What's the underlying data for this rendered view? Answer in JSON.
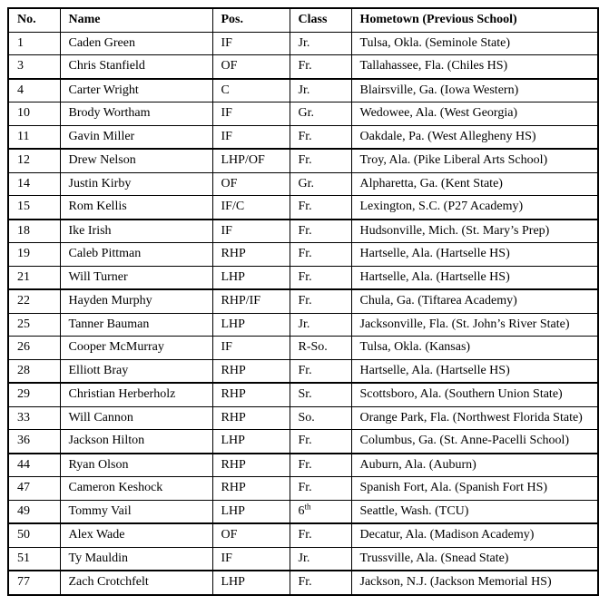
{
  "colors": {
    "background": "#ffffff",
    "text": "#000000",
    "border": "#000000"
  },
  "table": {
    "columns": [
      {
        "key": "no",
        "label": "No."
      },
      {
        "key": "name",
        "label": "Name"
      },
      {
        "key": "pos",
        "label": "Pos."
      },
      {
        "key": "class",
        "label": "Class"
      },
      {
        "key": "hometown",
        "label": "Hometown (Previous School)"
      }
    ],
    "rows": [
      {
        "no": "1",
        "name": "Caden Green",
        "pos": "IF",
        "class": "Jr.",
        "hometown": "Tulsa, Okla. (Seminole State)"
      },
      {
        "no": "3",
        "name": "Chris Stanfield",
        "pos": "OF",
        "class": "Fr.",
        "hometown": "Tallahassee, Fla. (Chiles HS)",
        "group_end": true
      },
      {
        "no": "4",
        "name": "Carter Wright",
        "pos": "C",
        "class": "Jr.",
        "hometown": "Blairsville, Ga. (Iowa Western)"
      },
      {
        "no": "10",
        "name": "Brody Wortham",
        "pos": "IF",
        "class": "Gr.",
        "hometown": "Wedowee, Ala. (West Georgia)"
      },
      {
        "no": "11",
        "name": "Gavin Miller",
        "pos": "IF",
        "class": "Fr.",
        "hometown": "Oakdale, Pa. (West Allegheny HS)",
        "group_end": true
      },
      {
        "no": "12",
        "name": "Drew Nelson",
        "pos": "LHP/OF",
        "class": "Fr.",
        "hometown": "Troy, Ala. (Pike Liberal Arts School)"
      },
      {
        "no": "14",
        "name": "Justin Kirby",
        "pos": "OF",
        "class": "Gr.",
        "hometown": "Alpharetta, Ga. (Kent State)"
      },
      {
        "no": "15",
        "name": "Rom Kellis",
        "pos": "IF/C",
        "class": "Fr.",
        "hometown": "Lexington, S.C. (P27 Academy)",
        "group_end": true
      },
      {
        "no": "18",
        "name": "Ike Irish",
        "pos": "IF",
        "class": "Fr.",
        "hometown": "Hudsonville, Mich. (St. Mary’s Prep)"
      },
      {
        "no": "19",
        "name": "Caleb Pittman",
        "pos": "RHP",
        "class": "Fr.",
        "hometown": "Hartselle, Ala. (Hartselle HS)"
      },
      {
        "no": "21",
        "name": "Will Turner",
        "pos": "LHP",
        "class": "Fr.",
        "hometown": "Hartselle, Ala. (Hartselle HS)",
        "group_end": true
      },
      {
        "no": "22",
        "name": "Hayden Murphy",
        "pos": "RHP/IF",
        "class": "Fr.",
        "hometown": "Chula, Ga. (Tiftarea Academy)"
      },
      {
        "no": "25",
        "name": "Tanner Bauman",
        "pos": "LHP",
        "class": "Jr.",
        "hometown": "Jacksonville, Fla. (St. John’s River State)"
      },
      {
        "no": "26",
        "name": "Cooper McMurray",
        "pos": "IF",
        "class": "R-So.",
        "hometown": "Tulsa, Okla. (Kansas)"
      },
      {
        "no": "28",
        "name": "Elliott Bray",
        "pos": "RHP",
        "class": "Fr.",
        "hometown": "Hartselle, Ala. (Hartselle HS)",
        "group_end": true
      },
      {
        "no": "29",
        "name": "Christian Herberholz",
        "pos": "RHP",
        "class": "Sr.",
        "hometown": "Scottsboro, Ala. (Southern Union State)"
      },
      {
        "no": "33",
        "name": "Will Cannon",
        "pos": "RHP",
        "class": "So.",
        "hometown": "Orange Park, Fla. (Northwest Florida State)",
        "wrap": true
      },
      {
        "no": "36",
        "name": "Jackson Hilton",
        "pos": "LHP",
        "class": "Fr.",
        "hometown": "Columbus, Ga. (St. Anne-Pacelli School)",
        "group_end": true
      },
      {
        "no": "44",
        "name": "Ryan Olson",
        "pos": "RHP",
        "class": "Fr.",
        "hometown": "Auburn, Ala. (Auburn)"
      },
      {
        "no": "47",
        "name": "Cameron Keshock",
        "pos": "RHP",
        "class": "Fr.",
        "hometown": "Spanish Fort, Ala. (Spanish Fort HS)"
      },
      {
        "no": "49",
        "name": "Tommy Vail",
        "pos": "LHP",
        "class": "6",
        "class_sup": "th",
        "hometown": "Seattle, Wash. (TCU)",
        "group_end": true
      },
      {
        "no": "50",
        "name": "Alex Wade",
        "pos": "OF",
        "class": "Fr.",
        "hometown": "Decatur, Ala. (Madison Academy)"
      },
      {
        "no": "51",
        "name": "Ty Mauldin",
        "pos": "IF",
        "class": "Jr.",
        "hometown": "Trussville, Ala. (Snead State)",
        "group_end": true
      },
      {
        "no": "77",
        "name": "Zach Crotchfelt",
        "pos": "LHP",
        "class": "Fr.",
        "hometown": "Jackson, N.J. (Jackson Memorial HS)"
      }
    ]
  }
}
